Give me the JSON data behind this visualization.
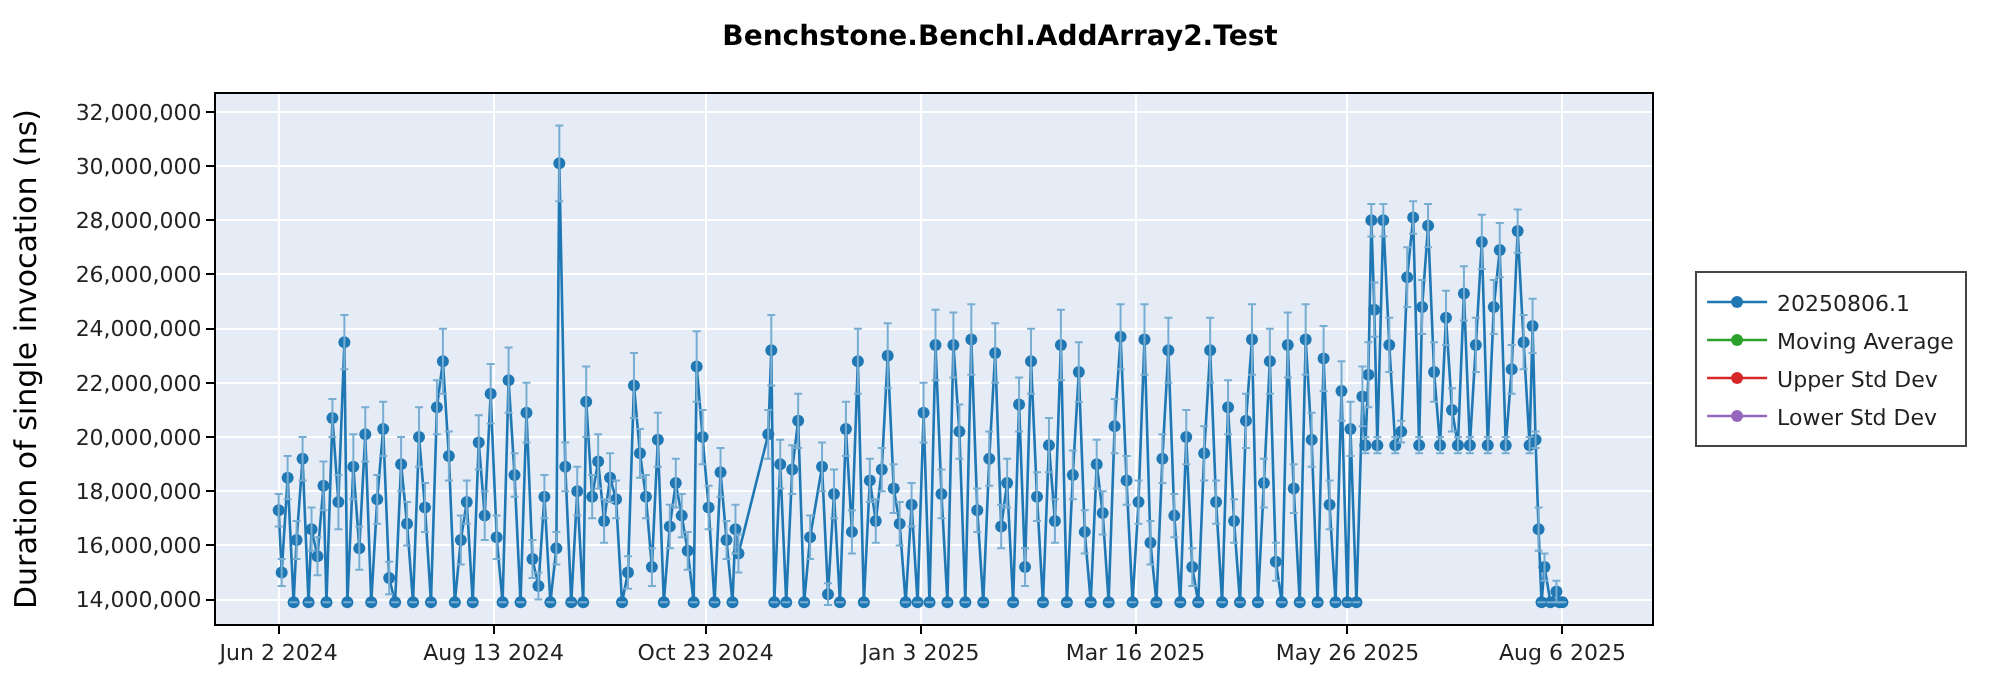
{
  "chart_data": {
    "type": "line",
    "title": "Benchstone.BenchI.AddArray2.Test",
    "ylabel": "Duration of single invocation (ns)",
    "x": [
      "2024-06-02",
      "2024-06-03",
      "2024-06-05",
      "2024-06-07",
      "2024-06-08",
      "2024-06-10",
      "2024-06-12",
      "2024-06-13",
      "2024-06-15",
      "2024-06-17",
      "2024-06-18",
      "2024-06-20",
      "2024-06-22",
      "2024-06-24",
      "2024-06-25",
      "2024-06-27",
      "2024-06-29",
      "2024-07-01",
      "2024-07-03",
      "2024-07-05",
      "2024-07-07",
      "2024-07-09",
      "2024-07-11",
      "2024-07-13",
      "2024-07-15",
      "2024-07-17",
      "2024-07-19",
      "2024-07-21",
      "2024-07-23",
      "2024-07-25",
      "2024-07-27",
      "2024-07-29",
      "2024-07-31",
      "2024-08-02",
      "2024-08-04",
      "2024-08-06",
      "2024-08-08",
      "2024-08-10",
      "2024-08-12",
      "2024-08-14",
      "2024-08-16",
      "2024-08-18",
      "2024-08-20",
      "2024-08-22",
      "2024-08-24",
      "2024-08-26",
      "2024-08-28",
      "2024-08-30",
      "2024-09-01",
      "2024-09-03",
      "2024-09-04",
      "2024-09-06",
      "2024-09-08",
      "2024-09-10",
      "2024-09-12",
      "2024-09-13",
      "2024-09-15",
      "2024-09-17",
      "2024-09-19",
      "2024-09-21",
      "2024-09-23",
      "2024-09-25",
      "2024-09-27",
      "2024-09-29",
      "2024-10-01",
      "2024-10-03",
      "2024-10-05",
      "2024-10-07",
      "2024-10-09",
      "2024-10-11",
      "2024-10-13",
      "2024-10-15",
      "2024-10-17",
      "2024-10-19",
      "2024-10-20",
      "2024-10-22",
      "2024-10-24",
      "2024-10-26",
      "2024-10-28",
      "2024-10-30",
      "2024-11-01",
      "2024-11-02",
      "2024-11-03",
      "2024-11-13",
      "2024-11-14",
      "2024-11-15",
      "2024-11-17",
      "2024-11-19",
      "2024-11-21",
      "2024-11-23",
      "2024-11-25",
      "2024-11-27",
      "2024-12-01",
      "2024-12-03",
      "2024-12-05",
      "2024-12-07",
      "2024-12-09",
      "2024-12-11",
      "2024-12-13",
      "2024-12-15",
      "2024-12-17",
      "2024-12-19",
      "2024-12-21",
      "2024-12-23",
      "2024-12-25",
      "2024-12-27",
      "2024-12-29",
      "2024-12-31",
      "2025-01-02",
      "2025-01-04",
      "2025-01-06",
      "2025-01-08",
      "2025-01-10",
      "2025-01-12",
      "2025-01-14",
      "2025-01-16",
      "2025-01-18",
      "2025-01-20",
      "2025-01-22",
      "2025-01-24",
      "2025-01-26",
      "2025-01-28",
      "2025-01-30",
      "2025-02-01",
      "2025-02-03",
      "2025-02-05",
      "2025-02-07",
      "2025-02-09",
      "2025-02-11",
      "2025-02-13",
      "2025-02-15",
      "2025-02-17",
      "2025-02-19",
      "2025-02-21",
      "2025-02-23",
      "2025-02-25",
      "2025-02-27",
      "2025-03-01",
      "2025-03-03",
      "2025-03-05",
      "2025-03-07",
      "2025-03-09",
      "2025-03-11",
      "2025-03-13",
      "2025-03-15",
      "2025-03-17",
      "2025-03-19",
      "2025-03-21",
      "2025-03-23",
      "2025-03-25",
      "2025-03-27",
      "2025-03-29",
      "2025-03-31",
      "2025-04-02",
      "2025-04-04",
      "2025-04-06",
      "2025-04-08",
      "2025-04-10",
      "2025-04-12",
      "2025-04-14",
      "2025-04-16",
      "2025-04-18",
      "2025-04-20",
      "2025-04-22",
      "2025-04-24",
      "2025-04-26",
      "2025-04-28",
      "2025-04-30",
      "2025-05-02",
      "2025-05-04",
      "2025-05-06",
      "2025-05-08",
      "2025-05-10",
      "2025-05-12",
      "2025-05-14",
      "2025-05-16",
      "2025-05-18",
      "2025-05-20",
      "2025-05-22",
      "2025-05-24",
      "2025-05-26",
      "2025-05-27",
      "2025-05-29",
      "2025-05-31",
      "2025-06-01",
      "2025-06-02",
      "2025-06-03",
      "2025-06-04",
      "2025-06-05",
      "2025-06-07",
      "2025-06-09",
      "2025-06-11",
      "2025-06-13",
      "2025-06-15",
      "2025-06-17",
      "2025-06-19",
      "2025-06-20",
      "2025-06-22",
      "2025-06-24",
      "2025-06-26",
      "2025-06-28",
      "2025-06-30",
      "2025-07-02",
      "2025-07-04",
      "2025-07-06",
      "2025-07-08",
      "2025-07-10",
      "2025-07-12",
      "2025-07-14",
      "2025-07-16",
      "2025-07-18",
      "2025-07-20",
      "2025-07-22",
      "2025-07-24",
      "2025-07-26",
      "2025-07-27",
      "2025-07-28",
      "2025-07-29",
      "2025-07-30",
      "2025-07-31",
      "2025-08-02",
      "2025-08-04",
      "2025-08-05",
      "2025-08-06"
    ],
    "series": [
      {
        "name": "20250806.1",
        "color": "#1f77b4",
        "values": [
          17300000,
          15000000,
          18500000,
          13900000,
          16200000,
          19200000,
          13900000,
          16600000,
          15600000,
          18200000,
          13900000,
          20700000,
          17600000,
          23500000,
          13900000,
          18900000,
          15900000,
          20100000,
          13900000,
          17700000,
          20300000,
          14800000,
          13900000,
          19000000,
          16800000,
          13900000,
          20000000,
          17400000,
          13900000,
          21100000,
          22800000,
          19300000,
          13900000,
          16200000,
          17600000,
          13900000,
          19800000,
          17100000,
          21600000,
          16300000,
          13900000,
          22100000,
          18600000,
          13900000,
          20900000,
          15500000,
          14500000,
          17800000,
          13900000,
          15900000,
          30100000,
          18900000,
          13900000,
          18000000,
          13900000,
          21300000,
          17800000,
          19100000,
          16900000,
          18500000,
          17700000,
          13900000,
          15000000,
          21900000,
          19400000,
          17800000,
          15200000,
          19900000,
          13900000,
          16700000,
          18300000,
          17100000,
          15800000,
          13900000,
          22600000,
          20000000,
          17400000,
          13900000,
          18700000,
          16200000,
          13900000,
          16600000,
          15700000,
          20100000,
          23200000,
          13900000,
          19000000,
          13900000,
          18800000,
          20600000,
          13900000,
          16300000,
          18900000,
          14200000,
          17900000,
          13900000,
          20300000,
          16500000,
          22800000,
          13900000,
          18400000,
          16900000,
          18800000,
          23000000,
          18100000,
          16800000,
          13900000,
          17500000,
          13900000,
          20900000,
          13900000,
          23400000,
          17900000,
          13900000,
          23400000,
          20200000,
          13900000,
          23600000,
          17300000,
          13900000,
          19200000,
          23100000,
          16700000,
          18300000,
          13900000,
          21200000,
          15200000,
          22800000,
          17800000,
          13900000,
          19700000,
          16900000,
          23400000,
          13900000,
          18600000,
          22400000,
          16500000,
          13900000,
          19000000,
          17200000,
          13900000,
          20400000,
          23700000,
          18400000,
          13900000,
          17600000,
          23600000,
          16100000,
          13900000,
          19200000,
          23200000,
          17100000,
          13900000,
          20000000,
          15200000,
          13900000,
          19400000,
          23200000,
          17600000,
          13900000,
          21100000,
          16900000,
          13900000,
          20600000,
          23600000,
          13900000,
          18300000,
          22800000,
          15400000,
          13900000,
          23400000,
          18100000,
          13900000,
          23600000,
          19900000,
          13900000,
          22900000,
          17500000,
          13900000,
          21700000,
          13900000,
          20300000,
          13900000,
          21500000,
          19700000,
          22300000,
          28000000,
          24700000,
          19700000,
          28000000,
          23400000,
          19700000,
          20200000,
          25900000,
          28100000,
          19700000,
          24800000,
          27800000,
          22400000,
          19700000,
          24400000,
          21000000,
          19700000,
          25300000,
          19700000,
          23400000,
          27200000,
          19700000,
          24800000,
          26900000,
          19700000,
          22500000,
          27600000,
          23500000,
          19700000,
          24100000,
          19900000,
          16600000,
          13900000,
          15200000,
          13900000,
          14300000,
          13900000,
          13900000
        ],
        "errors": [
          600000,
          500000,
          800000,
          null,
          700000,
          800000,
          null,
          800000,
          700000,
          900000,
          null,
          700000,
          1000000,
          1000000,
          null,
          1200000,
          800000,
          1000000,
          null,
          900000,
          1000000,
          600000,
          null,
          1000000,
          800000,
          null,
          1100000,
          900000,
          null,
          1000000,
          1200000,
          900000,
          null,
          900000,
          800000,
          null,
          1000000,
          900000,
          1100000,
          800000,
          null,
          1200000,
          800000,
          null,
          1100000,
          700000,
          500000,
          800000,
          null,
          600000,
          1400000,
          900000,
          null,
          900000,
          null,
          1300000,
          800000,
          1000000,
          800000,
          900000,
          700000,
          null,
          600000,
          1200000,
          900000,
          800000,
          700000,
          1000000,
          null,
          800000,
          900000,
          800000,
          700000,
          null,
          1300000,
          1000000,
          800000,
          null,
          900000,
          700000,
          null,
          900000,
          700000,
          900000,
          1300000,
          null,
          900000,
          null,
          900000,
          1000000,
          null,
          800000,
          900000,
          400000,
          900000,
          null,
          1000000,
          800000,
          1200000,
          null,
          800000,
          800000,
          800000,
          1200000,
          900000,
          800000,
          null,
          800000,
          null,
          1100000,
          null,
          1300000,
          900000,
          null,
          1200000,
          1000000,
          null,
          1300000,
          800000,
          null,
          1000000,
          1100000,
          800000,
          900000,
          null,
          1000000,
          700000,
          1200000,
          900000,
          null,
          1000000,
          800000,
          1300000,
          null,
          900000,
          1100000,
          800000,
          null,
          900000,
          800000,
          null,
          1000000,
          1200000,
          900000,
          null,
          800000,
          1300000,
          800000,
          null,
          900000,
          1200000,
          800000,
          null,
          1000000,
          700000,
          null,
          1000000,
          1200000,
          800000,
          null,
          1000000,
          800000,
          null,
          1000000,
          1300000,
          null,
          900000,
          1200000,
          700000,
          null,
          1200000,
          900000,
          null,
          1300000,
          1000000,
          null,
          1200000,
          900000,
          null,
          1100000,
          null,
          1000000,
          null,
          1100000,
          300000,
          1200000,
          600000,
          1000000,
          300000,
          600000,
          1000000,
          300000,
          400000,
          1100000,
          600000,
          300000,
          1000000,
          800000,
          1100000,
          300000,
          1000000,
          800000,
          300000,
          1000000,
          300000,
          1000000,
          1000000,
          300000,
          1000000,
          1000000,
          300000,
          900000,
          800000,
          1000000,
          300000,
          1000000,
          300000,
          800000,
          null,
          500000,
          null,
          400000,
          null,
          null
        ]
      },
      {
        "name": "Moving Average",
        "color": "#2ca02c",
        "values": [
          null,
          null,
          null,
          null,
          null,
          null,
          null,
          null,
          null,
          null,
          null,
          null,
          null,
          null,
          null,
          null,
          null,
          null,
          null,
          null,
          null,
          null,
          null,
          null,
          null,
          null,
          null,
          null,
          null,
          null,
          null,
          null,
          null,
          null,
          null,
          null,
          null,
          null,
          null,
          null,
          null,
          null,
          null,
          null,
          null,
          null,
          null,
          null,
          null,
          null,
          null,
          null,
          null,
          null,
          null,
          null,
          null,
          null,
          null,
          null,
          null,
          null,
          null,
          null,
          null,
          null,
          null,
          null,
          null,
          null,
          null,
          null,
          null,
          null,
          null,
          null,
          null,
          null,
          null,
          null,
          null,
          null,
          null,
          null,
          null,
          null,
          null,
          null,
          null,
          null,
          null,
          null,
          null,
          null,
          null,
          null,
          null,
          null,
          null,
          null,
          null,
          null,
          null,
          null,
          null,
          null,
          null,
          null,
          null,
          null,
          null,
          null,
          null,
          null,
          null,
          null,
          null,
          null,
          null,
          null,
          null,
          null,
          null,
          null,
          null,
          null,
          null,
          null,
          null,
          null,
          null,
          null,
          null,
          null,
          null,
          null,
          null,
          null,
          null,
          null,
          null,
          null,
          null,
          null,
          null,
          null,
          null,
          null,
          null,
          null,
          null,
          null,
          null,
          null,
          null,
          null,
          null,
          null,
          null,
          null,
          null,
          null,
          null,
          null,
          null,
          null,
          null,
          null,
          null,
          null,
          null,
          null,
          null,
          null,
          null,
          null,
          null,
          null,
          null,
          null,
          null,
          null,
          null,
          null,
          null,
          null,
          null,
          null,
          null,
          null,
          null,
          null,
          null,
          null,
          null,
          null,
          null,
          null,
          null,
          null,
          null,
          null,
          null,
          null,
          null,
          null,
          null,
          null,
          null,
          null,
          null,
          null,
          null,
          null,
          null,
          null,
          null,
          null,
          null,
          null,
          null,
          null,
          null,
          null
        ]
      },
      {
        "name": "Upper Std Dev",
        "color": "#d62728",
        "values": [
          null,
          null,
          null,
          null,
          null,
          null,
          null,
          null,
          null,
          null,
          null,
          null,
          null,
          null,
          null,
          null,
          null,
          null,
          null,
          null,
          null,
          null,
          null,
          null,
          null,
          null,
          null,
          null,
          null,
          null,
          null,
          null,
          null,
          null,
          null,
          null,
          null,
          null,
          null,
          null,
          null,
          null,
          null,
          null,
          null,
          null,
          null,
          null,
          null,
          null,
          null,
          null,
          null,
          null,
          null,
          null,
          null,
          null,
          null,
          null,
          null,
          null,
          null,
          null,
          null,
          null,
          null,
          null,
          null,
          null,
          null,
          null,
          null,
          null,
          null,
          null,
          null,
          null,
          null,
          null,
          null,
          null,
          null,
          null,
          null,
          null,
          null,
          null,
          null,
          null,
          null,
          null,
          null,
          null,
          null,
          null,
          null,
          null,
          null,
          null,
          null,
          null,
          null,
          null,
          null,
          null,
          null,
          null,
          null,
          null,
          null,
          null,
          null,
          null,
          null,
          null,
          null,
          null,
          null,
          null,
          null,
          null,
          null,
          null,
          null,
          null,
          null,
          null,
          null,
          null,
          null,
          null,
          null,
          null,
          null,
          null,
          null,
          null,
          null,
          null,
          null,
          null,
          null,
          null,
          null,
          null,
          null,
          null,
          null,
          null,
          null,
          null,
          null,
          null,
          null,
          null,
          null,
          null,
          null,
          null,
          null,
          null,
          null,
          null,
          null,
          null,
          null,
          null,
          null,
          null,
          null,
          null,
          null,
          null,
          null,
          null,
          null,
          null,
          null,
          null,
          null,
          null,
          null,
          null,
          null,
          null,
          null,
          null,
          null,
          null,
          null,
          null,
          null,
          null,
          null,
          null,
          null,
          null,
          null,
          null,
          null,
          null,
          null,
          null,
          null,
          null,
          null,
          null,
          null,
          null,
          null,
          null,
          null,
          null,
          null,
          null,
          null,
          null,
          null,
          null,
          null,
          null,
          null,
          null
        ]
      },
      {
        "name": "Lower Std Dev",
        "color": "#9467bd",
        "values": [
          null,
          null,
          null,
          null,
          null,
          null,
          null,
          null,
          null,
          null,
          null,
          null,
          null,
          null,
          null,
          null,
          null,
          null,
          null,
          null,
          null,
          null,
          null,
          null,
          null,
          null,
          null,
          null,
          null,
          null,
          null,
          null,
          null,
          null,
          null,
          null,
          null,
          null,
          null,
          null,
          null,
          null,
          null,
          null,
          null,
          null,
          null,
          null,
          null,
          null,
          null,
          null,
          null,
          null,
          null,
          null,
          null,
          null,
          null,
          null,
          null,
          null,
          null,
          null,
          null,
          null,
          null,
          null,
          null,
          null,
          null,
          null,
          null,
          null,
          null,
          null,
          null,
          null,
          null,
          null,
          null,
          null,
          null,
          null,
          null,
          null,
          null,
          null,
          null,
          null,
          null,
          null,
          null,
          null,
          null,
          null,
          null,
          null,
          null,
          null,
          null,
          null,
          null,
          null,
          null,
          null,
          null,
          null,
          null,
          null,
          null,
          null,
          null,
          null,
          null,
          null,
          null,
          null,
          null,
          null,
          null,
          null,
          null,
          null,
          null,
          null,
          null,
          null,
          null,
          null,
          null,
          null,
          null,
          null,
          null,
          null,
          null,
          null,
          null,
          null,
          null,
          null,
          null,
          null,
          null,
          null,
          null,
          null,
          null,
          null,
          null,
          null,
          null,
          null,
          null,
          null,
          null,
          null,
          null,
          null,
          null,
          null,
          null,
          null,
          null,
          null,
          null,
          null,
          null,
          null,
          null,
          null,
          null,
          null,
          null,
          null,
          null,
          null,
          null,
          null,
          null,
          null,
          null,
          null,
          null,
          null,
          null,
          null,
          null,
          null,
          null,
          null,
          null,
          null,
          null,
          null,
          null,
          null,
          null,
          null,
          null,
          null,
          null,
          null,
          null,
          null,
          null,
          null,
          null,
          null,
          null,
          null,
          null,
          null,
          null,
          null,
          null,
          null,
          null,
          null,
          null,
          null,
          null,
          null
        ]
      }
    ],
    "xlim": [
      "2024-05-12",
      "2025-09-05"
    ],
    "xticks": [
      {
        "value": "2024-06-02",
        "label": "Jun 2 2024"
      },
      {
        "value": "2024-08-13",
        "label": "Aug 13 2024"
      },
      {
        "value": "2024-10-23",
        "label": "Oct 23 2024"
      },
      {
        "value": "2025-01-03",
        "label": "Jan 3 2025"
      },
      {
        "value": "2025-03-16",
        "label": "Mar 16 2025"
      },
      {
        "value": "2025-05-26",
        "label": "May 26 2025"
      },
      {
        "value": "2025-08-06",
        "label": "Aug 6 2025"
      }
    ],
    "ylim": [
      13100000,
      32660000
    ],
    "yticks": [
      {
        "value": 14000000,
        "label": "14,000,000"
      },
      {
        "value": 16000000,
        "label": "16,000,000"
      },
      {
        "value": 18000000,
        "label": "18,000,000"
      },
      {
        "value": 20000000,
        "label": "20,000,000"
      },
      {
        "value": 22000000,
        "label": "22,000,000"
      },
      {
        "value": 24000000,
        "label": "24,000,000"
      },
      {
        "value": 26000000,
        "label": "26,000,000"
      },
      {
        "value": 28000000,
        "label": "28,000,000"
      },
      {
        "value": 30000000,
        "label": "30,000,000"
      },
      {
        "value": 32000000,
        "label": "32,000,000"
      }
    ],
    "grid": true,
    "legend": "right",
    "marker": "circle",
    "line_style": "solid"
  }
}
